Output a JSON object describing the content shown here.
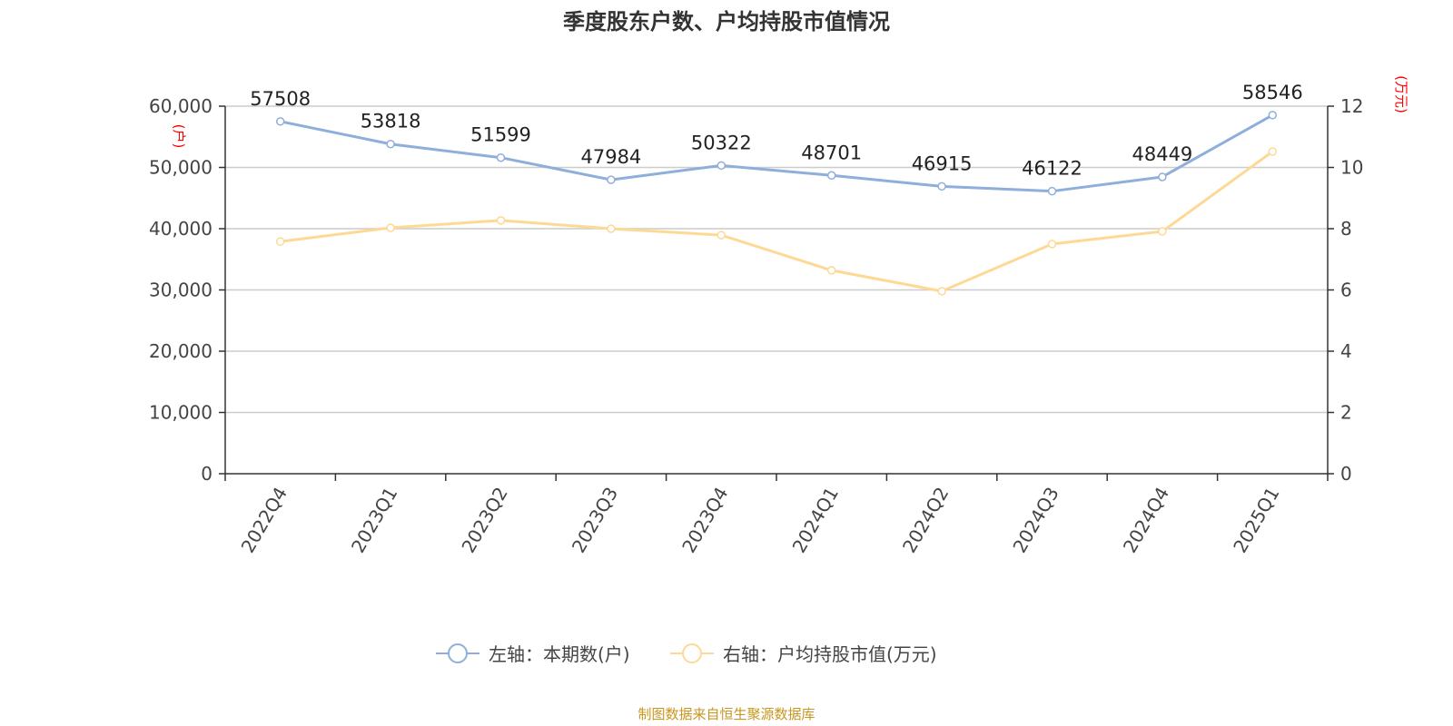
{
  "chart_data": {
    "type": "line",
    "title": "季度股东户数、户均持股市值情况",
    "categories": [
      "2022Q4",
      "2023Q1",
      "2023Q2",
      "2023Q3",
      "2023Q4",
      "2024Q1",
      "2024Q2",
      "2024Q3",
      "2024Q4",
      "2025Q1"
    ],
    "left_axis": {
      "unit_label": "(户)",
      "range": [
        0,
        60000
      ],
      "ticks": [
        0,
        10000,
        20000,
        30000,
        40000,
        50000,
        60000
      ],
      "tick_labels": [
        "0",
        "10,000",
        "20,000",
        "30,000",
        "40,000",
        "50,000",
        "60,000"
      ]
    },
    "right_axis": {
      "unit_label": "(万元)",
      "range": [
        0,
        12
      ],
      "ticks": [
        0,
        2,
        4,
        6,
        8,
        10,
        12
      ],
      "tick_labels": [
        "0",
        "2",
        "4",
        "6",
        "8",
        "10",
        "12"
      ]
    },
    "series": [
      {
        "name": "左轴：本期数(户)",
        "axis": "left",
        "color": "#8eaedb",
        "show_labels": true,
        "values": [
          57508,
          53818,
          51599,
          47984,
          50322,
          48701,
          46915,
          46122,
          48449,
          58546
        ]
      },
      {
        "name": "右轴：户均持股市值(万元)",
        "axis": "right",
        "color": "#fdd995",
        "show_labels": false,
        "values": [
          7.58,
          8.03,
          8.27,
          8.0,
          7.79,
          6.64,
          5.96,
          7.5,
          7.91,
          10.52
        ]
      }
    ],
    "grid": true,
    "legend_position": "bottom"
  },
  "source": "制图数据来自恒生聚源数据库"
}
